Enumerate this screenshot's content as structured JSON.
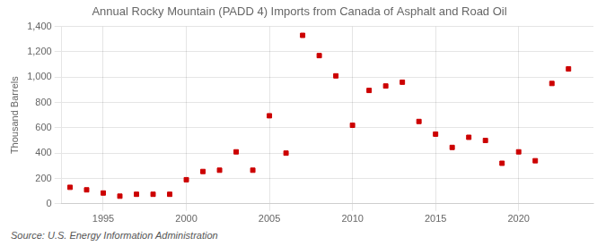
{
  "chart_data": {
    "type": "scatter",
    "title": "Annual Rocky Mountain (PADD 4) Imports from Canada of Asphalt and Road Oil",
    "ylabel": "Thousand Barrels",
    "source": "Source: U.S. Energy Information Administration",
    "x": [
      1993,
      1994,
      1995,
      1996,
      1997,
      1998,
      1999,
      2000,
      2001,
      2002,
      2003,
      2004,
      2005,
      2006,
      2007,
      2008,
      2009,
      2010,
      2011,
      2012,
      2013,
      2014,
      2015,
      2016,
      2017,
      2018,
      2019,
      2020,
      2021,
      2022,
      2023
    ],
    "values": [
      130,
      110,
      85,
      60,
      75,
      75,
      75,
      190,
      255,
      265,
      410,
      265,
      695,
      400,
      1330,
      1170,
      1010,
      620,
      895,
      930,
      960,
      650,
      550,
      445,
      525,
      500,
      320,
      410,
      340,
      950,
      1065
    ],
    "color": "#cc0000",
    "marker": "square",
    "xlim": [
      1992.5,
      2024.5
    ],
    "xticks": [
      1995,
      2000,
      2005,
      2010,
      2015,
      2020
    ],
    "ylim": [
      0,
      1400
    ],
    "yticks": [
      0,
      200,
      400,
      600,
      800,
      {
        "value": 1000,
        "label": "1,000"
      },
      {
        "value": 1200,
        "label": "1,200"
      },
      {
        "value": 1400,
        "label": "1,400"
      }
    ],
    "grid": true
  }
}
